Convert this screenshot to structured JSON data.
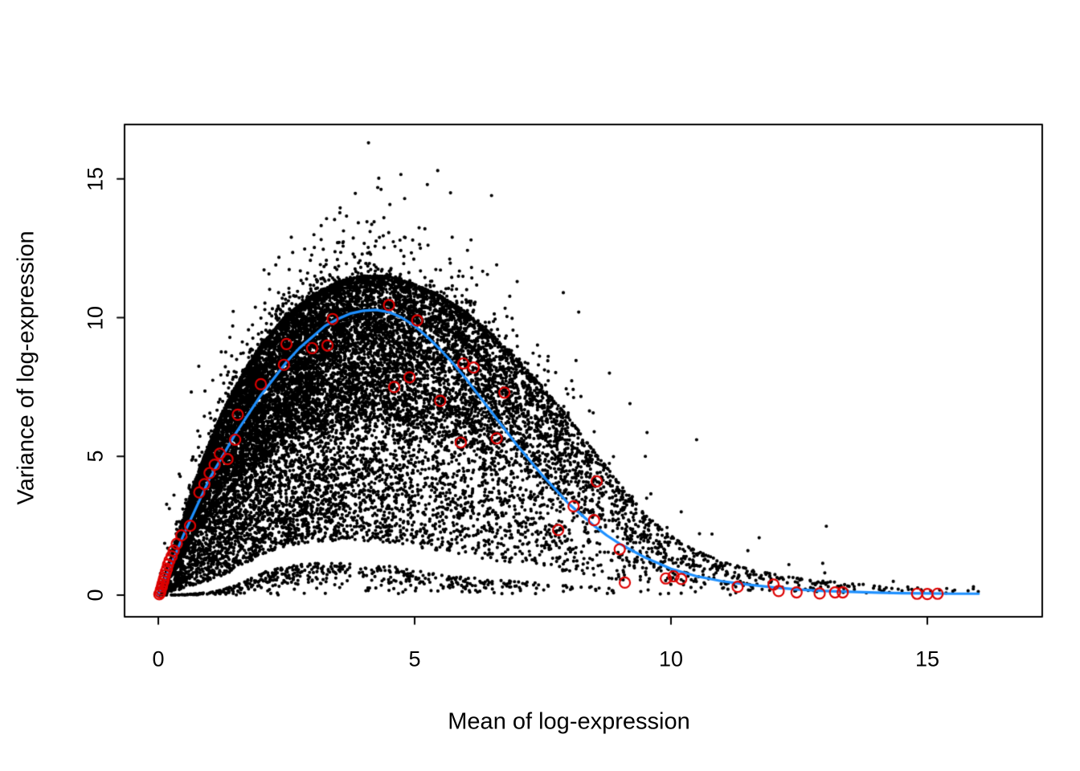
{
  "figure": {
    "title": "",
    "background": "#ffffff"
  },
  "chart_data": {
    "type": "scatter",
    "title": "",
    "xlabel": "Mean of log-expression",
    "ylabel": "Variance of log-expression",
    "xlim": [
      -0.7,
      17.2
    ],
    "ylim": [
      -0.8,
      17.0
    ],
    "x_ticks": [
      0,
      5,
      10,
      15
    ],
    "y_ticks": [
      0,
      5,
      10,
      15
    ],
    "grid": false,
    "legend": "none",
    "colors": {
      "points": "#000000",
      "trend": "#1E90FF",
      "highlight": "#DD0000"
    },
    "trend_line": {
      "name": "mean-variance-trend",
      "color": "#1E90FF",
      "width": 3.2,
      "points": [
        [
          0,
          0.02
        ],
        [
          0.25,
          1.1
        ],
        [
          0.5,
          2.2
        ],
        [
          0.75,
          3.2
        ],
        [
          1,
          4.2
        ],
        [
          1.25,
          5.0
        ],
        [
          1.5,
          5.8
        ],
        [
          1.75,
          6.5
        ],
        [
          2,
          7.2
        ],
        [
          2.25,
          7.8
        ],
        [
          2.5,
          8.4
        ],
        [
          2.75,
          8.9
        ],
        [
          3,
          9.3
        ],
        [
          3.25,
          9.7
        ],
        [
          3.5,
          9.95
        ],
        [
          3.75,
          10.15
        ],
        [
          4,
          10.25
        ],
        [
          4.25,
          10.28
        ],
        [
          4.5,
          10.2
        ],
        [
          4.75,
          10.0
        ],
        [
          5,
          9.7
        ],
        [
          5.25,
          9.3
        ],
        [
          5.5,
          8.85
        ],
        [
          5.75,
          8.35
        ],
        [
          6,
          7.8
        ],
        [
          6.25,
          7.2
        ],
        [
          6.5,
          6.6
        ],
        [
          6.75,
          6.0
        ],
        [
          7,
          5.4
        ],
        [
          7.25,
          4.85
        ],
        [
          7.5,
          4.3
        ],
        [
          7.75,
          3.8
        ],
        [
          8,
          3.3
        ],
        [
          8.25,
          2.9
        ],
        [
          8.5,
          2.5
        ],
        [
          8.75,
          2.15
        ],
        [
          9,
          1.85
        ],
        [
          9.25,
          1.6
        ],
        [
          9.5,
          1.35
        ],
        [
          9.75,
          1.15
        ],
        [
          10,
          0.95
        ],
        [
          10.5,
          0.68
        ],
        [
          11,
          0.5
        ],
        [
          11.5,
          0.38
        ],
        [
          12,
          0.28
        ],
        [
          12.5,
          0.2
        ],
        [
          13,
          0.15
        ],
        [
          13.5,
          0.12
        ],
        [
          14,
          0.09
        ],
        [
          14.5,
          0.07
        ],
        [
          15,
          0.06
        ],
        [
          15.5,
          0.05
        ],
        [
          16,
          0.05
        ]
      ]
    },
    "highlight_points": {
      "name": "highlighted-genes",
      "marker": "open-circle",
      "color": "#DD0000",
      "radius": 6.5,
      "stroke_width": 2.2,
      "points": [
        [
          0.02,
          0.03
        ],
        [
          0.04,
          0.1
        ],
        [
          0.05,
          0.2
        ],
        [
          0.07,
          0.3
        ],
        [
          0.08,
          0.4
        ],
        [
          0.1,
          0.5
        ],
        [
          0.11,
          0.6
        ],
        [
          0.13,
          0.72
        ],
        [
          0.15,
          0.85
        ],
        [
          0.17,
          0.95
        ],
        [
          0.19,
          1.1
        ],
        [
          0.22,
          1.25
        ],
        [
          0.26,
          1.4
        ],
        [
          0.3,
          1.6
        ],
        [
          0.36,
          1.85
        ],
        [
          0.45,
          2.15
        ],
        [
          0.62,
          2.5
        ],
        [
          0.8,
          3.7
        ],
        [
          0.9,
          4.0
        ],
        [
          1.0,
          4.4
        ],
        [
          1.1,
          4.7
        ],
        [
          1.2,
          5.1
        ],
        [
          1.35,
          4.9
        ],
        [
          1.5,
          5.6
        ],
        [
          1.55,
          6.5
        ],
        [
          2.0,
          7.6
        ],
        [
          2.45,
          8.3
        ],
        [
          2.5,
          9.05
        ],
        [
          3.0,
          8.9
        ],
        [
          3.3,
          9.0
        ],
        [
          3.4,
          9.95
        ],
        [
          4.5,
          10.45
        ],
        [
          5.05,
          9.9
        ],
        [
          4.6,
          7.5
        ],
        [
          4.9,
          7.85
        ],
        [
          5.5,
          7.0
        ],
        [
          5.9,
          5.5
        ],
        [
          5.95,
          8.35
        ],
        [
          6.15,
          8.2
        ],
        [
          6.6,
          5.65
        ],
        [
          6.75,
          7.3
        ],
        [
          7.8,
          2.35
        ],
        [
          8.1,
          3.2
        ],
        [
          8.5,
          2.7
        ],
        [
          8.55,
          4.1
        ],
        [
          9.0,
          1.65
        ],
        [
          9.1,
          0.45
        ],
        [
          9.9,
          0.6
        ],
        [
          10.05,
          0.68
        ],
        [
          10.2,
          0.58
        ],
        [
          11.3,
          0.3
        ],
        [
          12.0,
          0.38
        ],
        [
          12.1,
          0.15
        ],
        [
          12.45,
          0.1
        ],
        [
          12.9,
          0.06
        ],
        [
          13.2,
          0.1
        ],
        [
          13.35,
          0.1
        ],
        [
          14.8,
          0.05
        ],
        [
          15.0,
          0.04
        ],
        [
          15.2,
          0.05
        ]
      ]
    },
    "point_cloud": {
      "name": "genes",
      "marker": "filled-circle",
      "color": "#000000",
      "radius": 2.1,
      "count": 17000,
      "seed": 42,
      "x_cdf": [
        [
          0,
          0
        ],
        [
          0.3,
          0.02
        ],
        [
          0.6,
          0.05
        ],
        [
          1,
          0.1
        ],
        [
          1.5,
          0.18
        ],
        [
          2,
          0.27
        ],
        [
          2.5,
          0.36
        ],
        [
          3,
          0.45
        ],
        [
          3.5,
          0.53
        ],
        [
          4,
          0.6
        ],
        [
          4.5,
          0.67
        ],
        [
          5,
          0.73
        ],
        [
          5.5,
          0.78
        ],
        [
          6,
          0.83
        ],
        [
          6.5,
          0.87
        ],
        [
          7,
          0.9
        ],
        [
          7.5,
          0.925
        ],
        [
          8,
          0.945
        ],
        [
          8.5,
          0.96
        ],
        [
          9,
          0.97
        ],
        [
          9.5,
          0.978
        ],
        [
          10,
          0.984
        ],
        [
          10.5,
          0.988
        ],
        [
          11,
          0.991
        ],
        [
          11.5,
          0.9935
        ],
        [
          12,
          0.9955
        ],
        [
          13,
          0.9975
        ],
        [
          14,
          0.9987
        ],
        [
          15,
          0.9995
        ],
        [
          16,
          1
        ]
      ],
      "envelope": [
        [
          0,
          0,
          0.05
        ],
        [
          0.25,
          0,
          1.4
        ],
        [
          0.5,
          0.02,
          2.9
        ],
        [
          0.75,
          0.05,
          4.3
        ],
        [
          1,
          0.1,
          5.5
        ],
        [
          1.25,
          0.2,
          6.6
        ],
        [
          1.5,
          0.35,
          7.5
        ],
        [
          1.75,
          0.55,
          8.3
        ],
        [
          2,
          0.8,
          9.0
        ],
        [
          2.5,
          1.05,
          10.1
        ],
        [
          3,
          1.15,
          10.8
        ],
        [
          3.5,
          1.15,
          11.3
        ],
        [
          4,
          1.1,
          11.5
        ],
        [
          4.5,
          1.05,
          11.5
        ],
        [
          5,
          0.9,
          11.2
        ],
        [
          5.5,
          0.8,
          10.8
        ],
        [
          6,
          0.65,
          10.2
        ],
        [
          6.5,
          0.55,
          9.4
        ],
        [
          7,
          0.5,
          8.5
        ],
        [
          7.5,
          0.42,
          7.5
        ],
        [
          8,
          0.35,
          6.4
        ],
        [
          8.5,
          0.3,
          5.2
        ],
        [
          9,
          0.25,
          4.0
        ],
        [
          9.5,
          0.2,
          2.9
        ],
        [
          10,
          0.15,
          2.1
        ],
        [
          10.5,
          0.12,
          1.6
        ],
        [
          11,
          0.1,
          1.2
        ],
        [
          11.5,
          0.09,
          0.95
        ],
        [
          12,
          0.08,
          0.75
        ],
        [
          12.5,
          0.07,
          0.6
        ],
        [
          13,
          0.06,
          0.5
        ],
        [
          13.5,
          0.06,
          0.42
        ],
        [
          14,
          0.05,
          0.35
        ],
        [
          14.5,
          0.05,
          0.3
        ],
        [
          15,
          0.04,
          0.27
        ],
        [
          15.5,
          0.04,
          0.24
        ],
        [
          16,
          0.03,
          0.22
        ]
      ],
      "outliers": [
        [
          4.1,
          16.3
        ],
        [
          5.45,
          15.3
        ],
        [
          5.7,
          14.5
        ],
        [
          6.5,
          14.4
        ],
        [
          4.4,
          13.6
        ],
        [
          3.6,
          12.7
        ],
        [
          6.1,
          12.8
        ],
        [
          6.6,
          11.9
        ],
        [
          5.2,
          13.2
        ],
        [
          4.8,
          12.9
        ],
        [
          7.0,
          11.3
        ],
        [
          7.9,
          10.9
        ],
        [
          8.2,
          10.2
        ],
        [
          10.5,
          5.6
        ],
        [
          9.5,
          5.0
        ],
        [
          10.2,
          3.0
        ],
        [
          10.8,
          2.2
        ],
        [
          11.5,
          1.6
        ],
        [
          12.3,
          1.1
        ],
        [
          13.0,
          0.8
        ],
        [
          15.9,
          0.3
        ],
        [
          8.8,
          8.0
        ],
        [
          9.2,
          6.9
        ]
      ]
    }
  }
}
